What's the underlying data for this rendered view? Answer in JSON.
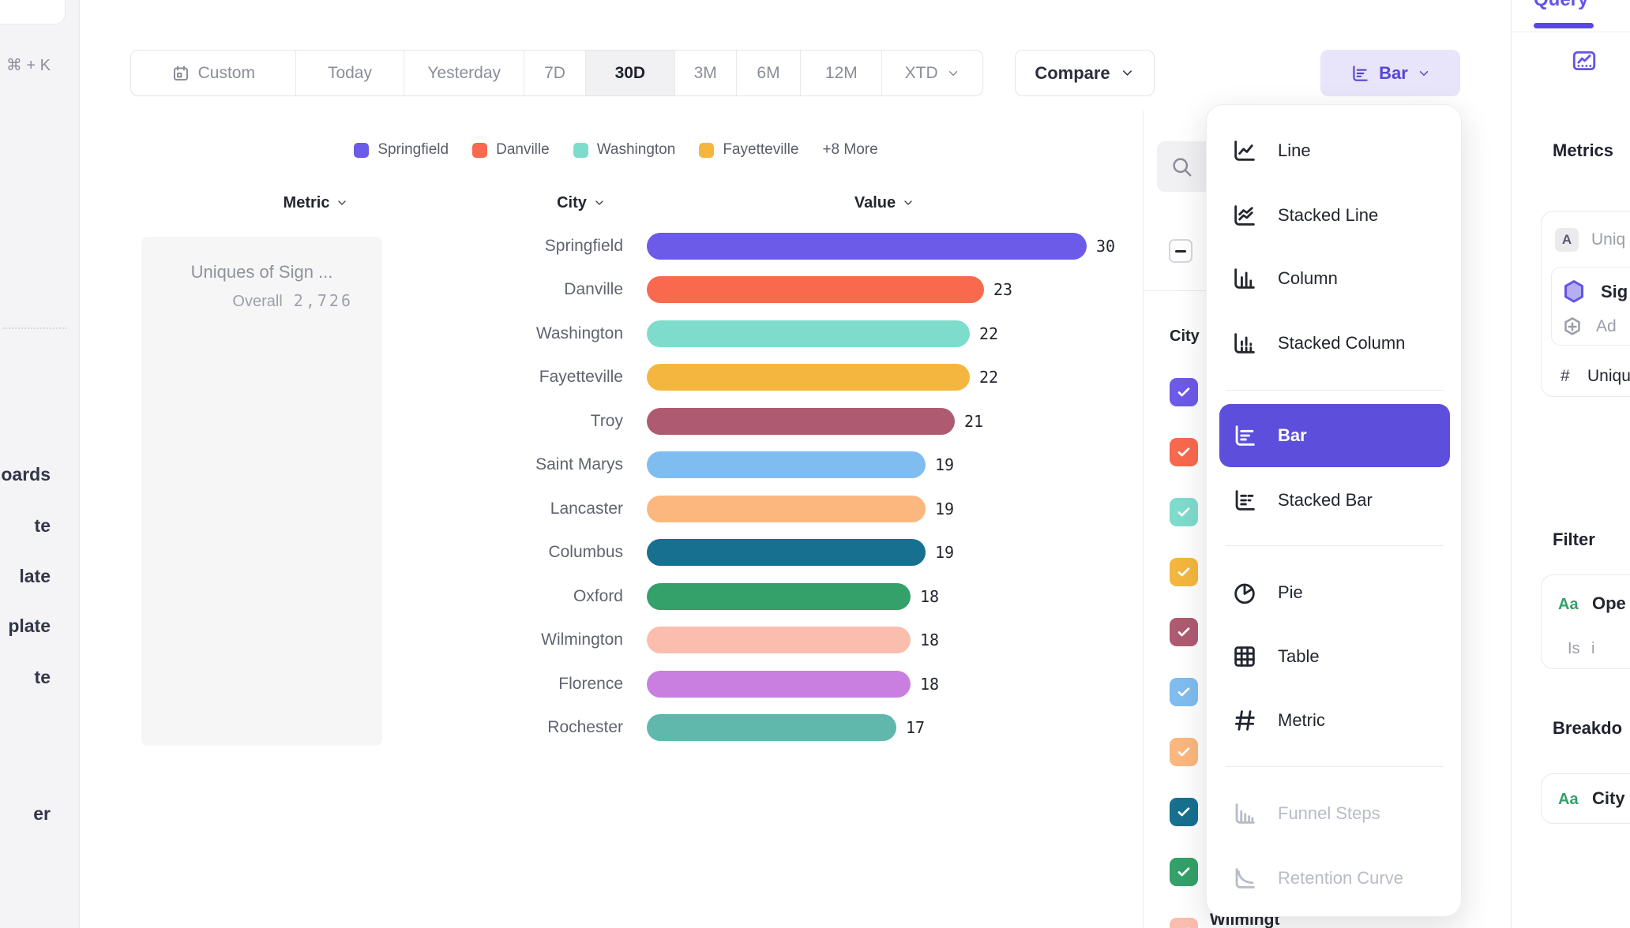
{
  "colors": {
    "accent": "#5D4EDB",
    "accent_light_bg": "#E8E5FB",
    "accent_text": "#5546D6",
    "query_tab": "#6254E8",
    "aa_green": "#34A06B"
  },
  "left_rail": {
    "shortcut": "⌘ + K",
    "fragments": [
      "oards",
      "te",
      "late",
      "plate",
      "te",
      "er"
    ]
  },
  "toolbar": {
    "ranges": [
      {
        "label": "Custom",
        "icon": "calendar",
        "active": false
      },
      {
        "label": "Today",
        "active": false
      },
      {
        "label": "Yesterday",
        "active": false
      },
      {
        "label": "7D",
        "active": false
      },
      {
        "label": "30D",
        "active": true
      },
      {
        "label": "3M",
        "active": false
      },
      {
        "label": "6M",
        "active": false
      },
      {
        "label": "12M",
        "active": false
      },
      {
        "label": "XTD",
        "chevron": true,
        "active": false
      }
    ],
    "compare_label": "Compare",
    "chart_type_button": {
      "label": "Bar",
      "icon": "bar"
    }
  },
  "legend": {
    "items": [
      {
        "label": "Springfield",
        "color": "#6C5AE8"
      },
      {
        "label": "Danville",
        "color": "#F8694D"
      },
      {
        "label": "Washington",
        "color": "#7EDCCC"
      },
      {
        "label": "Fayetteville",
        "color": "#F4B63E"
      }
    ],
    "more_label": "+8 More"
  },
  "table": {
    "headers": [
      "Metric",
      "City",
      "Value"
    ]
  },
  "metric_card": {
    "title": "Uniques of Sign ...",
    "overall_label": "Overall",
    "overall_value": "2,726"
  },
  "chart_data": {
    "type": "bar",
    "orientation": "horizontal",
    "title": "Uniques of Sign ...",
    "overall": "2,726",
    "categories": [
      "Springfield",
      "Danville",
      "Washington",
      "Fayetteville",
      "Troy",
      "Saint Marys",
      "Lancaster",
      "Columbus",
      "Oxford",
      "Wilmington",
      "Florence",
      "Rochester"
    ],
    "values": [
      30,
      23,
      22,
      22,
      21,
      19,
      19,
      19,
      18,
      18,
      18,
      17
    ],
    "colors": [
      "#6C5AE8",
      "#F8694D",
      "#7EDCCC",
      "#F4B63E",
      "#AE5B71",
      "#7FBCEF",
      "#FBB77D",
      "#17708F",
      "#33A169",
      "#FBBDAD",
      "#C97FE0",
      "#5FB8AB"
    ],
    "xlim": [
      0,
      30
    ],
    "value_labels": true,
    "legend_position": "top"
  },
  "city_flyout": {
    "column_label": "City",
    "partial_label": "Wilmingt",
    "checkbox_colors": [
      "#6C5AE8",
      "#F8694D",
      "#7EDCCC",
      "#F4B63E",
      "#AE5B71",
      "#7FBCEF",
      "#FBB77D",
      "#17708F",
      "#33A169",
      "#FBBDAD"
    ]
  },
  "chart_type_menu": {
    "items": [
      {
        "label": "Line",
        "icon": "line",
        "selected": false,
        "disabled": false
      },
      {
        "label": "Stacked Line",
        "icon": "stacked-line",
        "selected": false,
        "disabled": false
      },
      {
        "label": "Column",
        "icon": "column",
        "selected": false,
        "disabled": false
      },
      {
        "label": "Stacked Column",
        "icon": "stacked-column",
        "selected": false,
        "disabled": false
      },
      {
        "label": "Bar",
        "icon": "bar",
        "selected": true,
        "disabled": false
      },
      {
        "label": "Stacked Bar",
        "icon": "stacked-bar",
        "selected": false,
        "disabled": false
      },
      {
        "label": "Pie",
        "icon": "pie",
        "selected": false,
        "disabled": false
      },
      {
        "label": "Table",
        "icon": "table",
        "selected": false,
        "disabled": false
      },
      {
        "label": "Metric",
        "icon": "metric",
        "selected": false,
        "disabled": false
      },
      {
        "label": "Funnel Steps",
        "icon": "funnel",
        "selected": false,
        "disabled": true
      },
      {
        "label": "Retention Curve",
        "icon": "retention",
        "selected": false,
        "disabled": true
      }
    ]
  },
  "query_panel": {
    "tab_label": "Query",
    "metrics_heading": "Metrics",
    "event_chip": "A",
    "event_label": "Uniq",
    "signup_label": "Sig",
    "add_label": "Ad",
    "measure_hash": "#",
    "measure_label": "Uniqu",
    "filter_heading": "Filter",
    "filter_aa": "Aa",
    "filter_field": "Ope",
    "filter_op": "Is",
    "filter_value": "i",
    "breakdown_heading": "Breakdo",
    "breakdown_aa": "Aa",
    "breakdown_field": "City"
  }
}
